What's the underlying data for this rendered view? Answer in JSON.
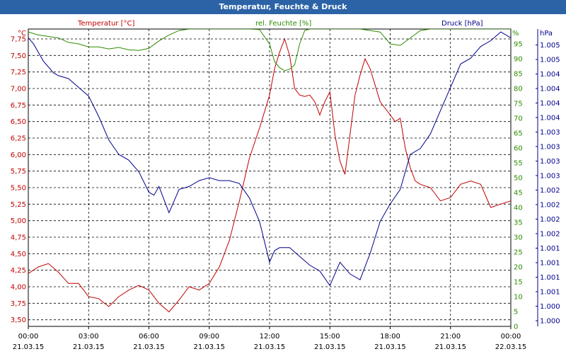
{
  "window_title": "Temperatur, Feuchte & Druck",
  "chart_data": {
    "type": "line",
    "title": "Temperatur, Feuchte & Druck",
    "x_tick_labels": [
      {
        "time": "00:00",
        "date": "21.03.15"
      },
      {
        "time": "03:00",
        "date": "21.03.15"
      },
      {
        "time": "06:00",
        "date": "21.03.15"
      },
      {
        "time": "09:00",
        "date": "21.03.15"
      },
      {
        "time": "12:00",
        "date": "21.03.15"
      },
      {
        "time": "15:00",
        "date": "21.03.15"
      },
      {
        "time": "18:00",
        "date": "21.03.15"
      },
      {
        "time": "21:00",
        "date": "21.03.15"
      },
      {
        "time": "00:00",
        "date": "22.03.15"
      }
    ],
    "x_range_hours": [
      0,
      24
    ],
    "grid": true,
    "axes": {
      "temperature": {
        "label": "Temperatur [°C]",
        "unit": "°C",
        "color": "#c00000",
        "side": "left",
        "ylim": [
          3.4,
          7.9
        ],
        "ticks": [
          "3,50",
          "3,75",
          "4,00",
          "4,25",
          "4,50",
          "4,75",
          "5,00",
          "5,25",
          "5,50",
          "5,75",
          "6,00",
          "6,25",
          "6,50",
          "6,75",
          "7,00",
          "7,25",
          "7,50",
          "7,75"
        ]
      },
      "humidity": {
        "label": "rel. Feuchte [%]",
        "unit": "%",
        "color": "#2e8b00",
        "side": "right",
        "ylim": [
          0,
          100
        ],
        "ticks": [
          "0",
          "5",
          "10",
          "15",
          "20",
          "25",
          "30",
          "35",
          "40",
          "45",
          "50",
          "55",
          "60",
          "65",
          "70",
          "75",
          "80",
          "85",
          "90",
          "95"
        ]
      },
      "pressure": {
        "label": "Druck [hPa]",
        "unit": "hPa",
        "color": "#00008b",
        "side": "right",
        "ylim": [
          1000.0,
          1005.1
        ],
        "ticks": [
          "1.000",
          "1.000",
          "1.001",
          "1.001",
          "1.001",
          "1.001",
          "1.002",
          "1.002",
          "1.002",
          "1.002",
          "1.003",
          "1.003",
          "1.003",
          "1.003",
          "1.004",
          "1.004",
          "1.004",
          "1.004",
          "1.005",
          "1.005"
        ]
      }
    },
    "series": [
      {
        "name": "Temperatur [°C]",
        "axis": "temperature",
        "color": "#c00000",
        "x": [
          0,
          0.5,
          1,
          1.5,
          2,
          2.5,
          3,
          3.5,
          4,
          4.5,
          5,
          5.5,
          6,
          6.5,
          7,
          7.5,
          8,
          8.5,
          9,
          9.5,
          10,
          10.5,
          11,
          11.5,
          12,
          12.25,
          12.5,
          12.75,
          13,
          13.25,
          13.5,
          13.75,
          14,
          14.25,
          14.5,
          14.75,
          15,
          15.25,
          15.5,
          15.75,
          16,
          16.25,
          16.5,
          16.75,
          17,
          17.25,
          17.5,
          17.75,
          18,
          18.25,
          18.5,
          18.75,
          19,
          19.25,
          19.5,
          20,
          20.5,
          21,
          21.5,
          22,
          22.5,
          23,
          23.5,
          24
        ],
        "y": [
          4.2,
          4.3,
          4.35,
          4.22,
          4.05,
          4.05,
          3.85,
          3.82,
          3.7,
          3.85,
          3.95,
          4.02,
          3.95,
          3.75,
          3.62,
          3.8,
          4.0,
          3.95,
          4.05,
          4.3,
          4.7,
          5.3,
          5.95,
          6.4,
          6.9,
          7.3,
          7.55,
          7.75,
          7.5,
          7.0,
          6.9,
          6.88,
          6.9,
          6.8,
          6.6,
          6.8,
          6.95,
          6.3,
          5.9,
          5.7,
          6.3,
          6.9,
          7.2,
          7.45,
          7.3,
          7.05,
          6.8,
          6.7,
          6.6,
          6.5,
          6.55,
          6.1,
          5.8,
          5.6,
          5.55,
          5.5,
          5.3,
          5.35,
          5.55,
          5.6,
          5.55,
          5.2,
          5.25,
          5.3
        ]
      },
      {
        "name": "rel. Feuchte [%]",
        "axis": "humidity",
        "color": "#2e8b00",
        "x": [
          0,
          0.5,
          1,
          1.5,
          2,
          2.5,
          3,
          3.5,
          4,
          4.5,
          5,
          5.5,
          6,
          6.5,
          7,
          7.5,
          8,
          8.5,
          9,
          9.5,
          10,
          10.5,
          11,
          11.5,
          12,
          12.25,
          12.5,
          12.75,
          13,
          13.25,
          13.5,
          13.75,
          14,
          14.5,
          15,
          15.5,
          16,
          16.5,
          17,
          17.5,
          18,
          18.5,
          19,
          19.5,
          20,
          21,
          22,
          23,
          24
        ],
        "y": [
          99,
          98,
          97.5,
          97,
          95.5,
          95,
          94,
          94,
          93.3,
          93.8,
          93,
          92.8,
          93.5,
          96,
          98,
          99.5,
          100,
          100,
          100,
          100,
          100,
          100,
          100,
          99.8,
          95,
          89,
          87,
          86,
          86.5,
          88,
          95,
          99.5,
          100,
          100,
          100,
          100,
          100,
          100,
          99.5,
          99,
          95,
          94.5,
          97,
          99.5,
          100,
          100,
          100,
          100,
          100
        ]
      },
      {
        "name": "Druck [hPa]",
        "axis": "pressure",
        "color": "#00008b",
        "x": [
          0,
          0.25,
          0.5,
          0.75,
          1,
          1.25,
          1.5,
          2,
          2.5,
          3,
          3.5,
          4,
          4.5,
          5,
          5.5,
          6,
          6.25,
          6.5,
          7,
          7.5,
          8,
          8.5,
          9,
          9.5,
          10,
          10.5,
          11,
          11.5,
          12,
          12.25,
          12.5,
          13,
          13.5,
          14,
          14.5,
          15,
          15.5,
          16,
          16.5,
          17,
          17.5,
          18,
          18.5,
          19,
          19.5,
          20,
          20.5,
          21,
          21.5,
          22,
          22.5,
          23,
          23.5,
          24
        ],
        "y": [
          1004.95,
          1004.85,
          1004.7,
          1004.55,
          1004.45,
          1004.35,
          1004.3,
          1004.25,
          1004.1,
          1003.95,
          1003.6,
          1003.2,
          1002.95,
          1002.85,
          1002.65,
          1002.3,
          1002.25,
          1002.4,
          1001.95,
          1002.35,
          1002.4,
          1002.5,
          1002.55,
          1002.5,
          1002.5,
          1002.45,
          1002.2,
          1001.8,
          1001.1,
          1001.3,
          1001.35,
          1001.35,
          1001.2,
          1001.05,
          1000.95,
          1000.7,
          1001.1,
          1000.9,
          1000.8,
          1001.25,
          1001.8,
          1002.1,
          1002.35,
          1002.95,
          1003.05,
          1003.3,
          1003.7,
          1004.1,
          1004.5,
          1004.6,
          1004.8,
          1004.9,
          1005.05,
          1004.95
        ]
      }
    ]
  }
}
